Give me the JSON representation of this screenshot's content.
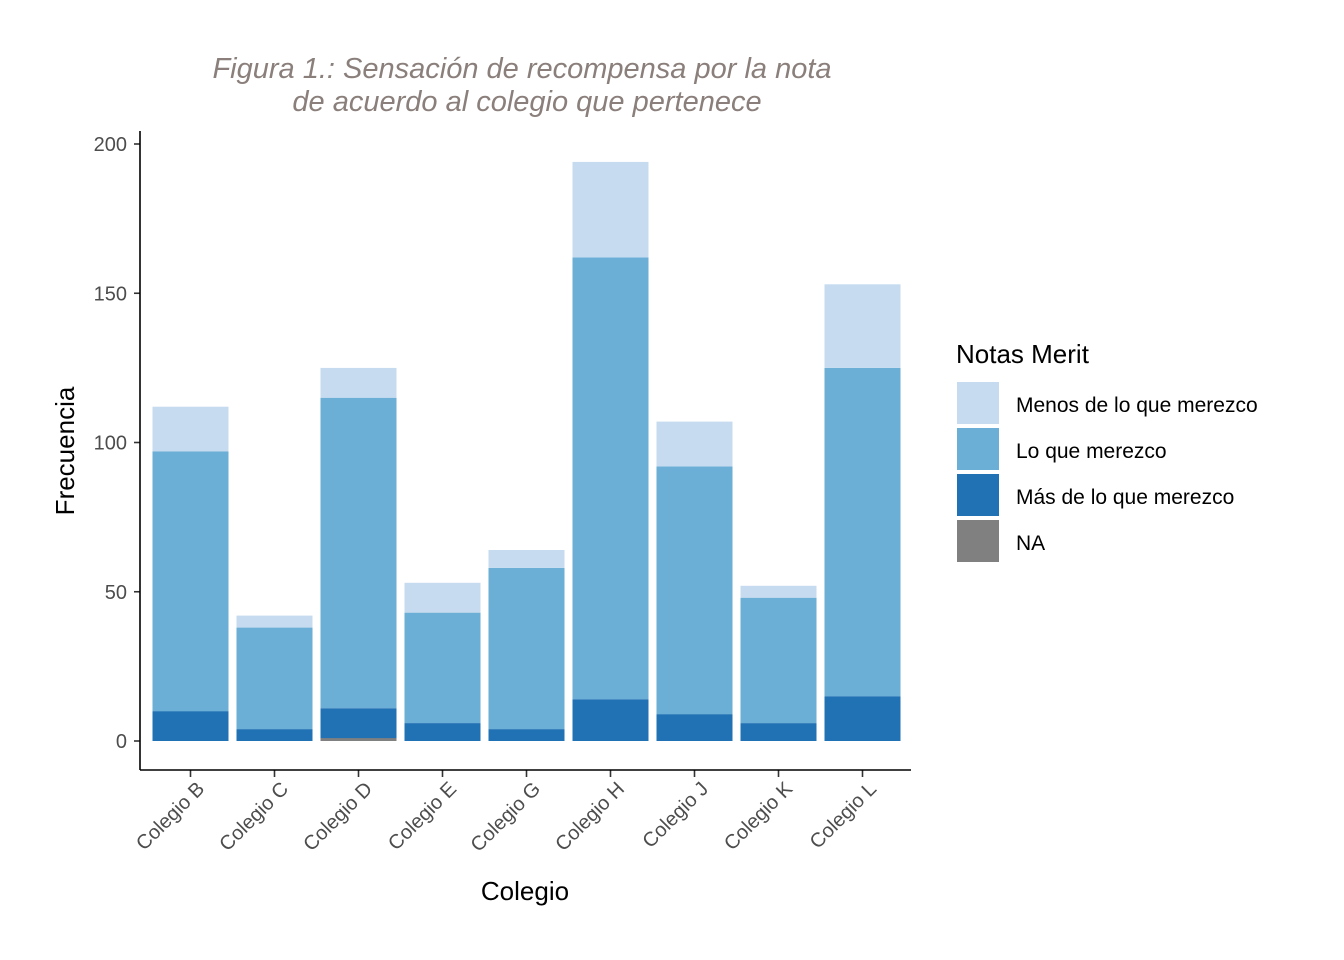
{
  "chart_data": {
    "type": "bar",
    "stacked": true,
    "title_lines": [
      "Figura 1.: Sensación de recompensa por la nota",
      "de acuerdo al colegio que pertenece"
    ],
    "xlabel": "Colegio",
    "ylabel": "Frecuencia",
    "ylim": [
      0,
      200
    ],
    "yticks": [
      "0",
      "50",
      "100",
      "150",
      "200"
    ],
    "ytick_values": [
      0,
      50,
      100,
      150,
      200
    ],
    "grid": false,
    "legend_position": "right",
    "legend_title": "Notas Merit",
    "categories": [
      "Colegio B",
      "Colegio C",
      "Colegio D",
      "Colegio E",
      "Colegio G",
      "Colegio H",
      "Colegio J",
      "Colegio K",
      "Colegio L"
    ],
    "series": [
      {
        "name": "Menos de lo que merezco",
        "color": "#c6dbef",
        "values": [
          15,
          4,
          10,
          10,
          6,
          32,
          15,
          4,
          28
        ]
      },
      {
        "name": "Lo que merezco",
        "color": "#6baed6",
        "values": [
          87,
          34,
          104,
          37,
          54,
          148,
          83,
          42,
          110
        ]
      },
      {
        "name": "Más de lo que merezco",
        "color": "#2171b5",
        "values": [
          10,
          4,
          10,
          6,
          4,
          14,
          9,
          6,
          15
        ]
      },
      {
        "name": "NA",
        "color": "#808080",
        "values": [
          0,
          0,
          1,
          0,
          0,
          0,
          0,
          0,
          0
        ]
      }
    ]
  }
}
